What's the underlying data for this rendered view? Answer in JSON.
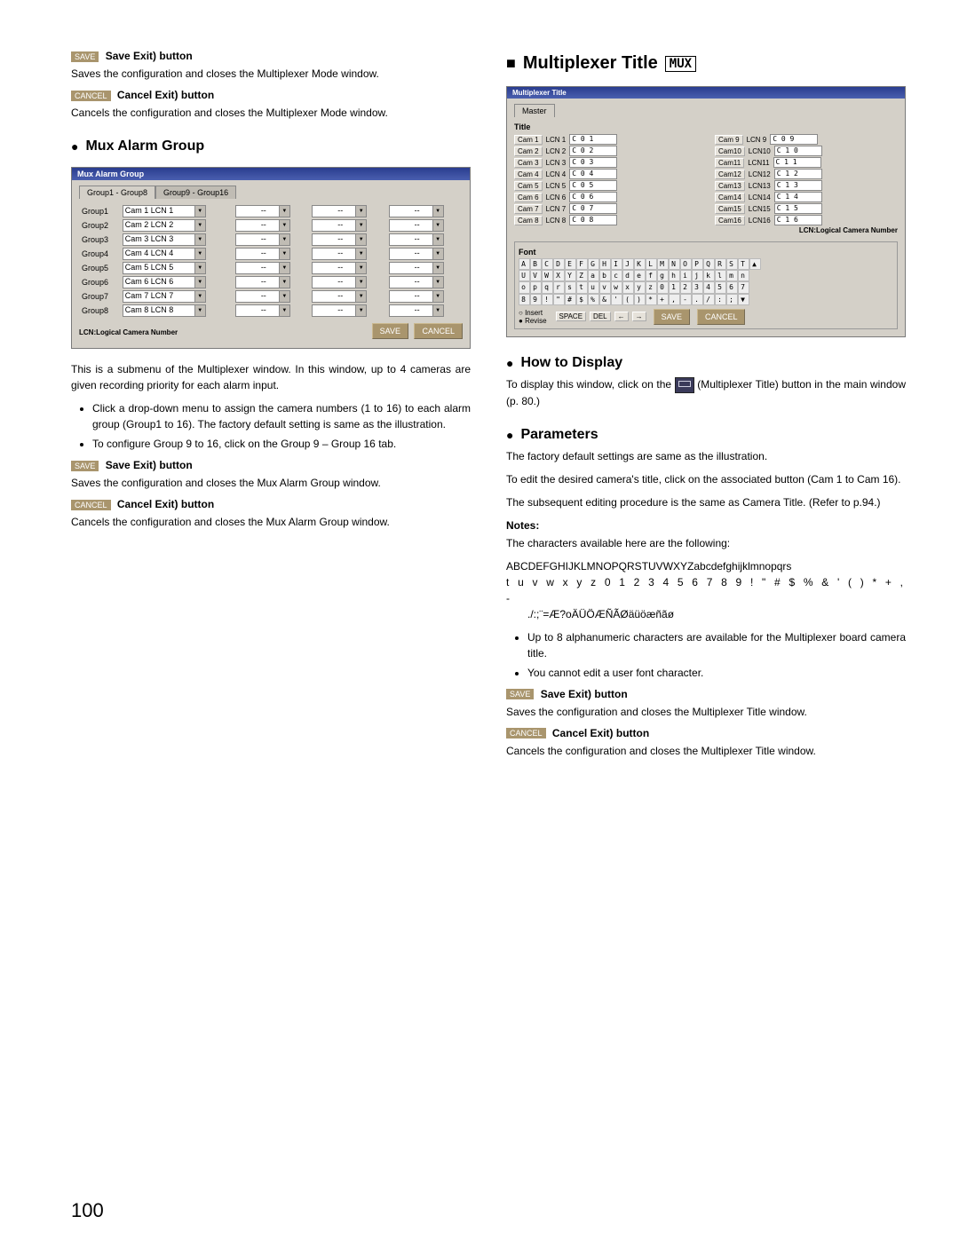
{
  "page_number": "100",
  "left": {
    "save_btn": {
      "chip": "SAVE",
      "label": "Save Exit) button",
      "desc": "Saves the configuration and closes the Multiplexer Mode window."
    },
    "cancel_btn": {
      "chip": "CANCEL",
      "label": "Cancel Exit) button",
      "desc": "Cancels the configuration and closes the Multiplexer Mode window."
    },
    "mux_alarm_title": "Mux Alarm Group",
    "panel": {
      "title": "Mux Alarm Group",
      "tab1": "Group1 - Group8",
      "tab2": "Group9 - Group16",
      "rows": [
        {
          "g": "Group1",
          "cam": "Cam 1  LCN 1"
        },
        {
          "g": "Group2",
          "cam": "Cam 2  LCN 2"
        },
        {
          "g": "Group3",
          "cam": "Cam 3  LCN 3"
        },
        {
          "g": "Group4",
          "cam": "Cam 4  LCN 4"
        },
        {
          "g": "Group5",
          "cam": "Cam 5  LCN 5"
        },
        {
          "g": "Group6",
          "cam": "Cam 6  LCN 6"
        },
        {
          "g": "Group7",
          "cam": "Cam 7  LCN 7"
        },
        {
          "g": "Group8",
          "cam": "Cam 8  LCN 8"
        }
      ],
      "dash": "--",
      "lcn_note": "LCN:Logical Camera Number",
      "save": "SAVE",
      "cancel": "CANCEL"
    },
    "submenu_text": "This is a submenu of the Multiplexer window. In this window, up to 4 cameras are given recording priority for each alarm input.",
    "bullet1": "Click a drop-down menu to assign the camera numbers (1 to 16) to each alarm group (Group1 to 16). The factory default setting is same as the illustration.",
    "bullet2": "To configure Group 9 to 16, click on the Group 9 – Group 16 tab.",
    "save_btn2": {
      "chip": "SAVE",
      "label": "Save Exit) button",
      "desc": "Saves the configuration and closes the Mux Alarm Group window."
    },
    "cancel_btn2": {
      "chip": "CANCEL",
      "label": "Cancel Exit) button",
      "desc": "Cancels the configuration and closes the Mux Alarm Group window."
    }
  },
  "right": {
    "title": "Multiplexer Title",
    "mux_box": "MUX",
    "panel": {
      "title": "Multiplexer Title",
      "master_tab": "Master",
      "title_label": "Title",
      "cams_left": [
        {
          "btn": "Cam 1",
          "lcn": "LCN 1",
          "val": "C 0 1"
        },
        {
          "btn": "Cam 2",
          "lcn": "LCN 2",
          "val": "C 0 2"
        },
        {
          "btn": "Cam 3",
          "lcn": "LCN 3",
          "val": "C 0 3"
        },
        {
          "btn": "Cam 4",
          "lcn": "LCN 4",
          "val": "C 0 4"
        },
        {
          "btn": "Cam 5",
          "lcn": "LCN 5",
          "val": "C 0 5"
        },
        {
          "btn": "Cam 6",
          "lcn": "LCN 6",
          "val": "C 0 6"
        },
        {
          "btn": "Cam 7",
          "lcn": "LCN 7",
          "val": "C 0 7"
        },
        {
          "btn": "Cam 8",
          "lcn": "LCN 8",
          "val": "C 0 8"
        }
      ],
      "cams_right": [
        {
          "btn": "Cam 9",
          "lcn": "LCN 9",
          "val": "C 0 9"
        },
        {
          "btn": "Cam10",
          "lcn": "LCN10",
          "val": "C 1 0"
        },
        {
          "btn": "Cam11",
          "lcn": "LCN11",
          "val": "C 1 1"
        },
        {
          "btn": "Cam12",
          "lcn": "LCN12",
          "val": "C 1 2"
        },
        {
          "btn": "Cam13",
          "lcn": "LCN13",
          "val": "C 1 3"
        },
        {
          "btn": "Cam14",
          "lcn": "LCN14",
          "val": "C 1 4"
        },
        {
          "btn": "Cam15",
          "lcn": "LCN15",
          "val": "C 1 5"
        },
        {
          "btn": "Cam16",
          "lcn": "LCN16",
          "val": "C 1 6"
        }
      ],
      "lcn_note": "LCN:Logical Camera Number",
      "font_label": "Font",
      "font_row1": "A B C D E F G H I J K L M N O P Q R S T ▲",
      "font_row2": "U V W X Y Z a b c d e f g h i j k l m n",
      "font_row3": "o p q r s t u v w x y z 0 1 2 3 4 5 6 7",
      "font_row4": "8 9 ! \" # $ % & ' ( ) * + , - . / : ; ▼",
      "insert": "Insert",
      "revise": "Revise",
      "space": "SPACE",
      "del": "DEL",
      "left_arrow": "←",
      "right_arrow": "→",
      "save": "SAVE",
      "cancel": "CANCEL"
    },
    "how_title": "How to Display",
    "how_text1": "To display this window, click on the",
    "how_text2": "(Multiplexer Title) button in the main window (p. 80.)",
    "params_title": "Parameters",
    "params_p1": "The factory default settings are same as the illustration.",
    "params_p2": "To edit the desired camera's title, click on the associated button (Cam 1 to Cam 16).",
    "params_p3": "The subsequent editing procedure is the same as Camera Title. (Refer to p.94.)",
    "notes_head": "Notes:",
    "notes_p1": "The characters available here are the following:",
    "notes_chars1": "ABCDEFGHIJKLMNOPQRSTUVWXYZabcdefghijklmnopqrs",
    "notes_chars2": "t u v w x y z 0 1 2 3 4 5 6 7 8 9 ! \" # $ % & ' ( ) * + , -",
    "notes_chars3": "./:;¨=Æ?oÄÜÖÆÑÃØäüöæñãø",
    "notes_b1": "Up to 8 alphanumeric characters are available for the Multiplexer board camera title.",
    "notes_b2": "You cannot edit a user font character.",
    "save_btn": {
      "chip": "SAVE",
      "label": "Save Exit) button",
      "desc": "Saves the configuration and closes the Multiplexer Title window."
    },
    "cancel_btn": {
      "chip": "CANCEL",
      "label": "Cancel Exit) button",
      "desc": "Cancels the configuration and closes the Multiplexer Title window."
    }
  }
}
